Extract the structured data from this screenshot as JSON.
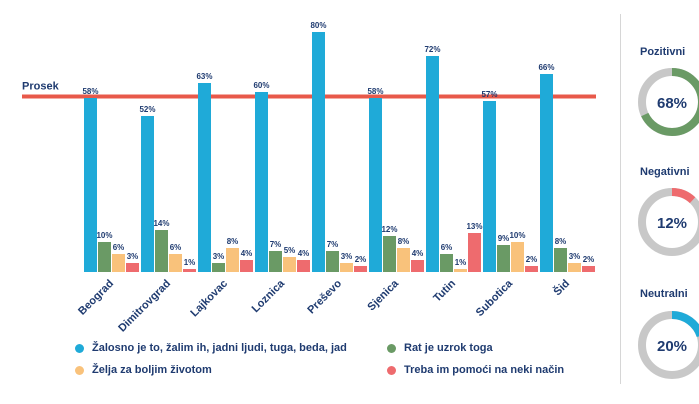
{
  "chart_data": {
    "type": "bar",
    "title": "",
    "xlabel": "",
    "ylabel": "",
    "ylim": [
      0,
      82
    ],
    "grid": false,
    "reference_line": {
      "label": "Prosek",
      "value": 58.5,
      "color": "#e8594a"
    },
    "categories": [
      "Beograd",
      "Dimitrovgrad",
      "Lajkovac",
      "Loznica",
      "Preševo",
      "Sjenica",
      "Tutin",
      "Subotica",
      "Šid"
    ],
    "series": [
      {
        "name": "Žalosno je to, žalim ih, jadni ljudi, tuga, beda, jad",
        "color": "#1faad8",
        "values": [
          58,
          52,
          63,
          60,
          80,
          58,
          72,
          57,
          66
        ]
      },
      {
        "name": "Rat je uzrok toga",
        "color": "#6a9a65",
        "values": [
          10,
          14,
          3,
          7,
          7,
          12,
          6,
          9,
          8
        ]
      },
      {
        "name": "Želja za boljim životom",
        "color": "#f9c27b",
        "values": [
          6,
          6,
          8,
          5,
          3,
          8,
          1,
          10,
          3
        ]
      },
      {
        "name": "Treba im pomoći na neki način",
        "color": "#ee6b6e",
        "values": [
          3,
          1,
          4,
          4,
          2,
          4,
          13,
          2,
          2
        ]
      }
    ],
    "value_suffix": "%",
    "legend_position": "bottom"
  },
  "donuts": [
    {
      "title": "Pozitivni",
      "value": 68,
      "label": "68%",
      "color": "#6a9a65"
    },
    {
      "title": "Negativni",
      "value": 12,
      "label": "12%",
      "color": "#ee6b6e"
    },
    {
      "title": "Neutralni",
      "value": 20,
      "label": "20%",
      "color": "#1faad8"
    }
  ],
  "colors": {
    "text": "#1f3b70",
    "track": "#c8c8c8"
  }
}
